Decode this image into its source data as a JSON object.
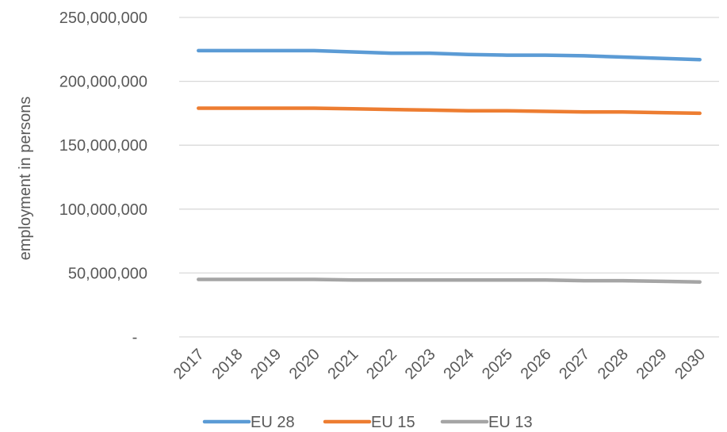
{
  "chart_data": {
    "type": "line",
    "title": "",
    "xlabel": "",
    "ylabel": "employment in persons",
    "x": [
      "2017",
      "2018",
      "2019",
      "2020",
      "2021",
      "2022",
      "2023",
      "2024",
      "2025",
      "2026",
      "2027",
      "2028",
      "2029",
      "2030"
    ],
    "ylim": [
      0,
      250000000
    ],
    "yticks": [
      {
        "value": 0,
        "label": "-"
      },
      {
        "value": 50000000,
        "label": "50,000,000"
      },
      {
        "value": 100000000,
        "label": "100,000,000"
      },
      {
        "value": 150000000,
        "label": "150,000,000"
      },
      {
        "value": 200000000,
        "label": "200,000,000"
      },
      {
        "value": 250000000,
        "label": "250,000,000"
      }
    ],
    "grid": true,
    "legend_position": "bottom",
    "series": [
      {
        "name": "EU 28",
        "color": "#5B9BD5",
        "values": [
          224000000,
          224000000,
          224000000,
          224000000,
          223000000,
          222000000,
          222000000,
          221000000,
          220500000,
          220500000,
          220000000,
          219000000,
          218000000,
          217000000
        ]
      },
      {
        "name": "EU 15",
        "color": "#ED7D31",
        "values": [
          179000000,
          179000000,
          179000000,
          179000000,
          178500000,
          178000000,
          177500000,
          177000000,
          177000000,
          176500000,
          176000000,
          176000000,
          175500000,
          175000000
        ]
      },
      {
        "name": "EU 13",
        "color": "#A5A5A5",
        "values": [
          45000000,
          45000000,
          45000000,
          45000000,
          44500000,
          44500000,
          44500000,
          44500000,
          44500000,
          44500000,
          44000000,
          44000000,
          43500000,
          43000000
        ]
      }
    ]
  }
}
